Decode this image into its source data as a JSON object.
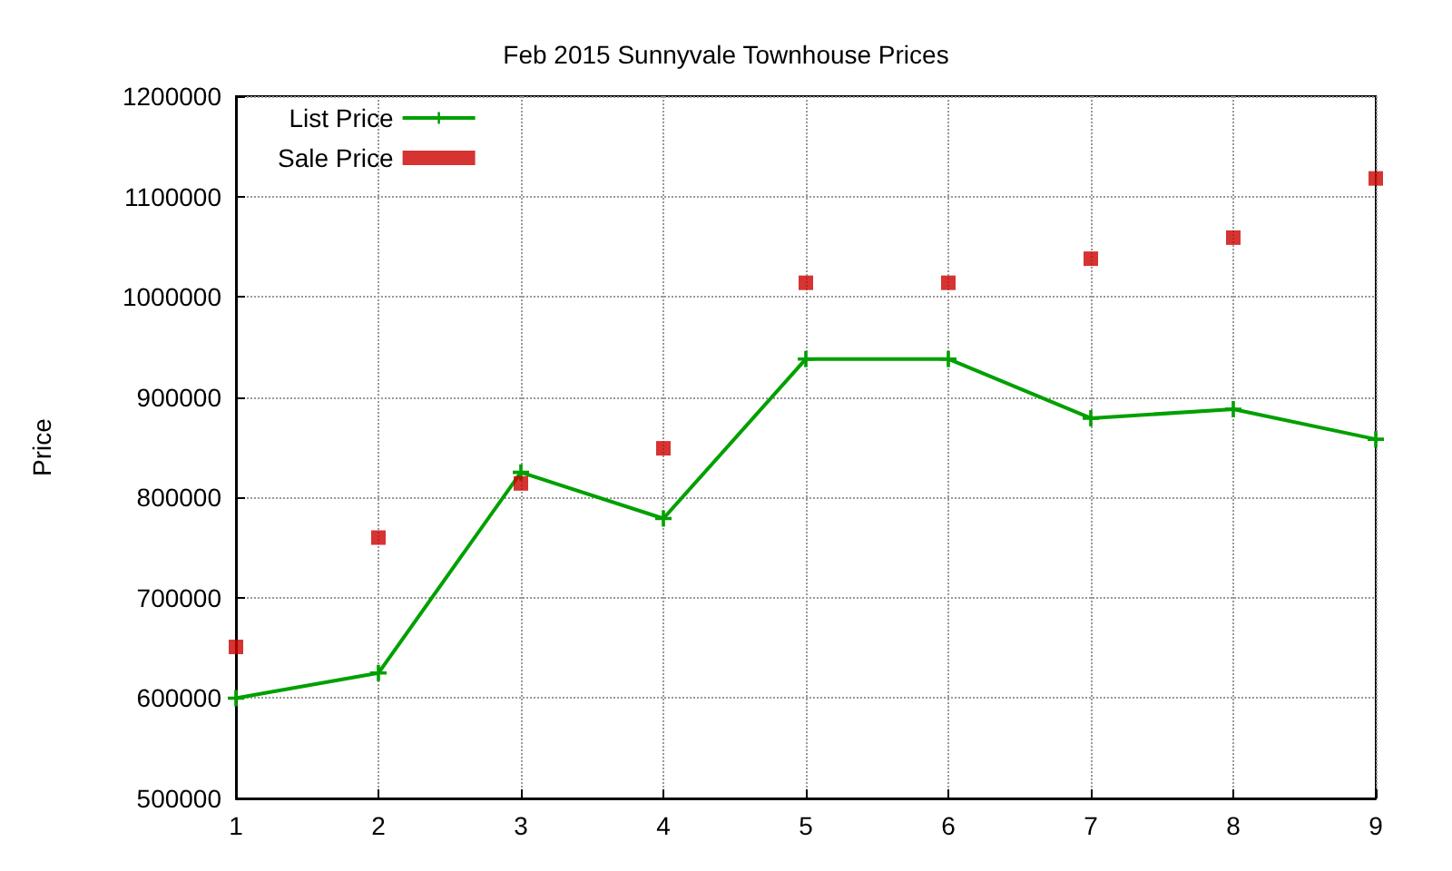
{
  "chart_data": {
    "type": "line",
    "title": "Feb 2015 Sunnyvale Townhouse Prices",
    "ylabel": "Price",
    "x": [
      1,
      2,
      3,
      4,
      5,
      6,
      7,
      8,
      9
    ],
    "series": [
      {
        "name": "List Price",
        "color": "#00a000",
        "marker": "cross",
        "values": [
          600000,
          625000,
          825000,
          779000,
          938000,
          938000,
          879000,
          888000,
          858000
        ]
      },
      {
        "name": "Sale Price",
        "type": "scatter",
        "color": "#cc0000",
        "marker": "square",
        "values": [
          651000,
          760000,
          814000,
          849000,
          1014000,
          1014000,
          1038000,
          1059000,
          1118000
        ]
      }
    ],
    "xlim": [
      1,
      9
    ],
    "xticks": [
      1,
      2,
      3,
      4,
      5,
      6,
      7,
      8,
      9
    ],
    "ylim": [
      500000,
      1200000
    ],
    "yticks": [
      500000,
      600000,
      700000,
      800000,
      900000,
      1000000,
      1100000,
      1200000
    ],
    "grid": true,
    "legend": "top left",
    "line_style": "solid"
  }
}
